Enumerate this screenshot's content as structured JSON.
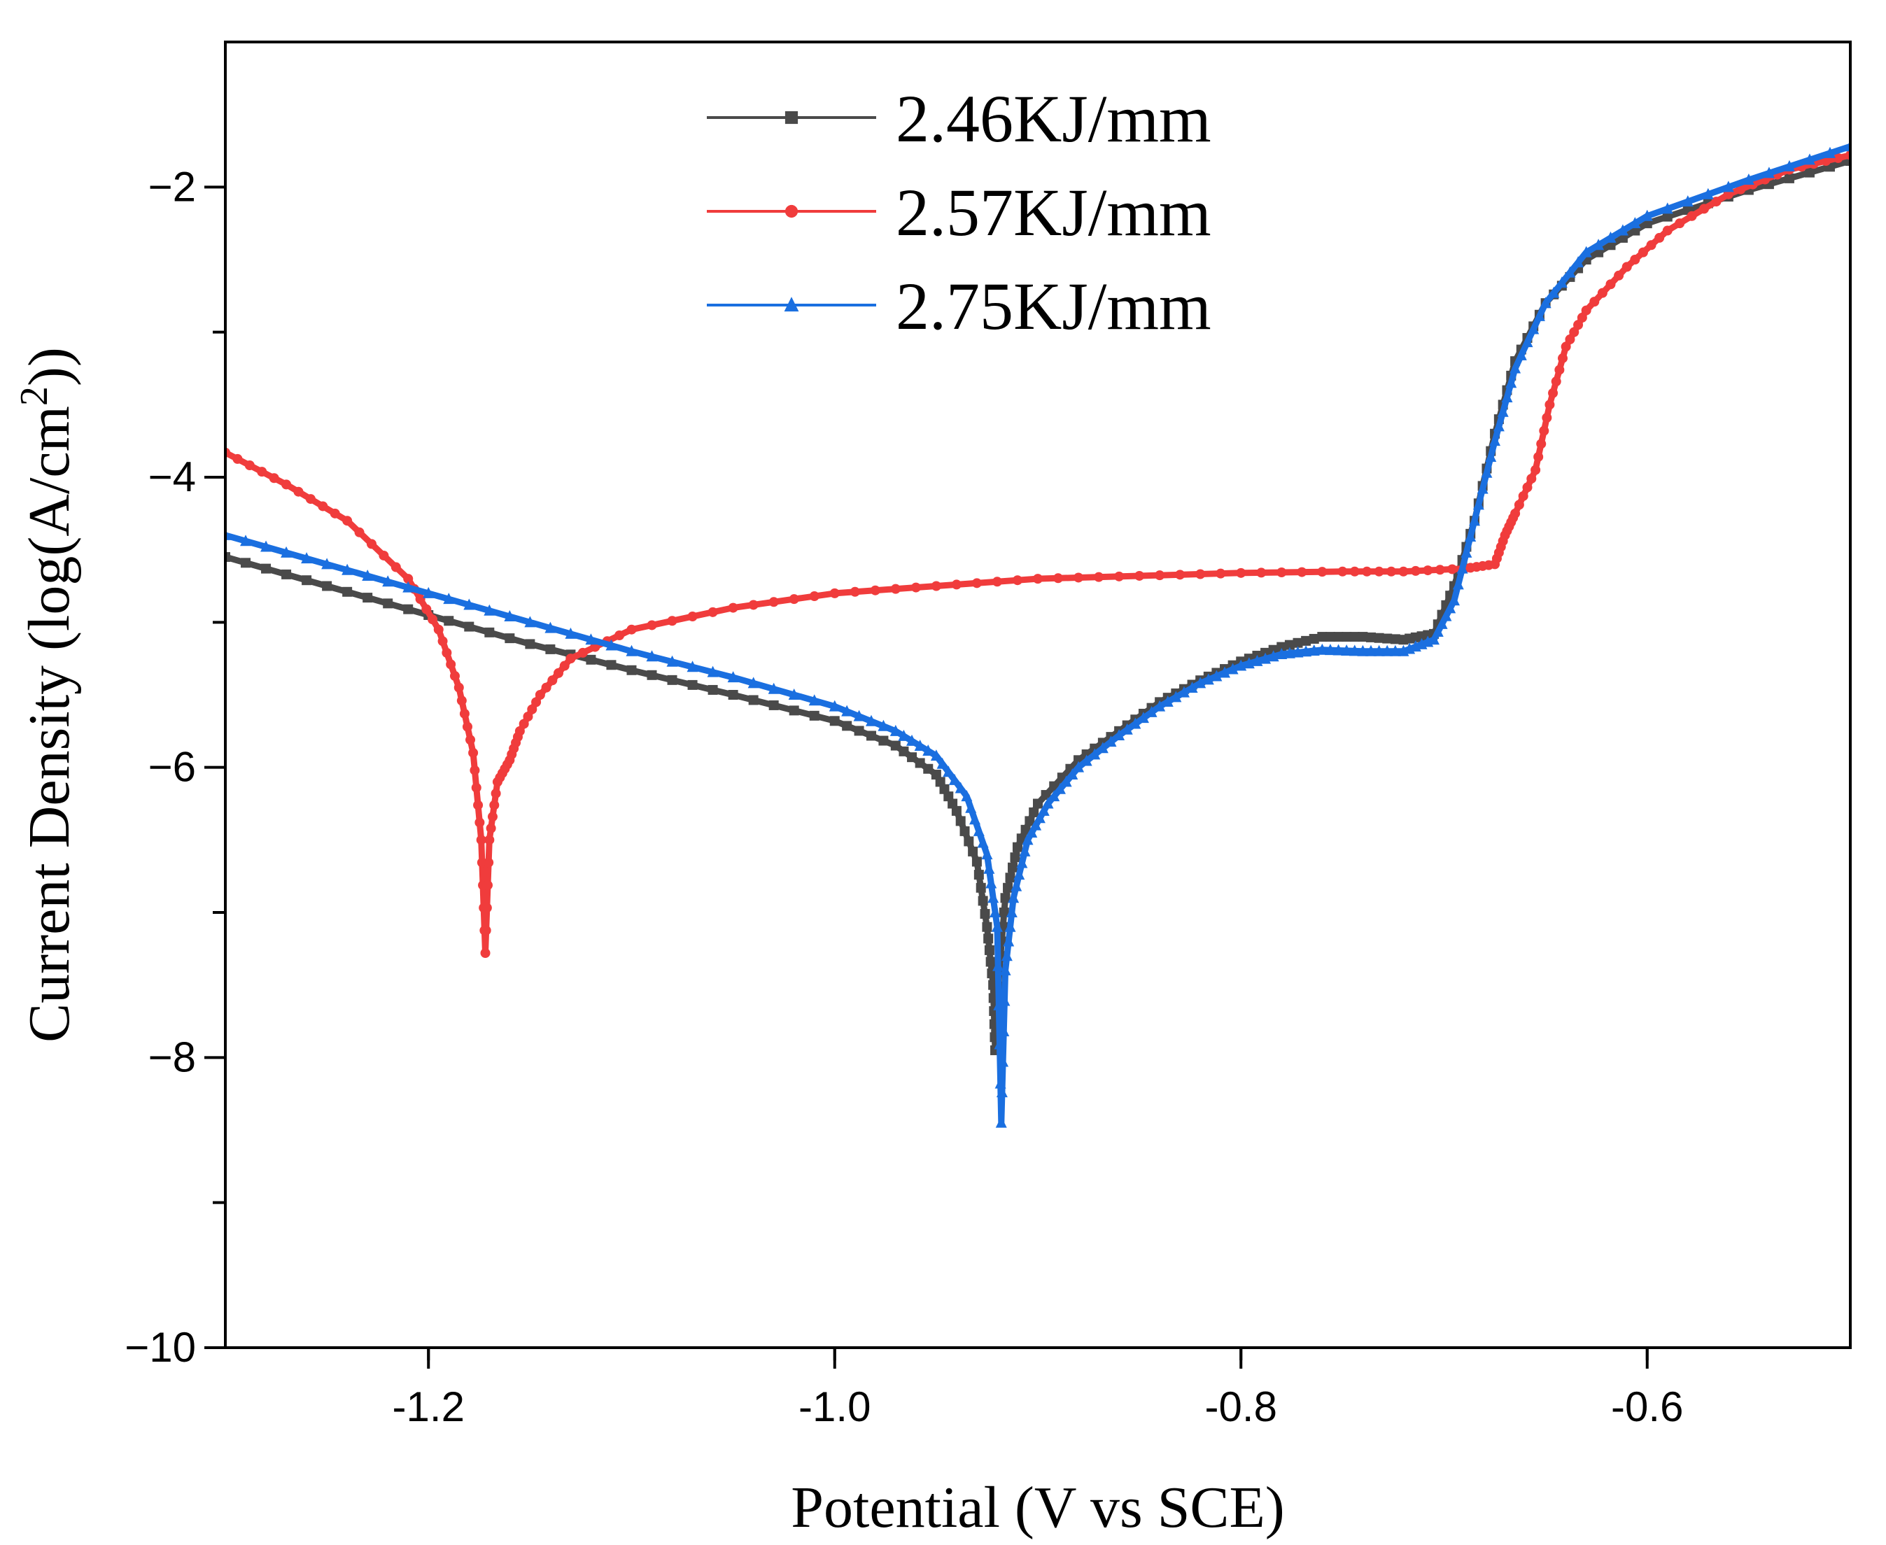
{
  "chart_data": {
    "type": "line",
    "xlabel": "Potential (V vs SCE)",
    "ylabel_main": "Current Density (log(A/cm",
    "ylabel_sup": "2",
    "ylabel_end": "))",
    "xlim": [
      -1.3,
      -0.5
    ],
    "ylim": [
      -10,
      -1
    ],
    "xticks": [
      -1.2,
      -1.0,
      -0.8,
      -0.6
    ],
    "xtick_labels": [
      "-1.2",
      "-1.0",
      "-0.8",
      "-0.6"
    ],
    "yticks": [
      -10,
      -8,
      -6,
      -4,
      -2
    ],
    "ytick_labels": [
      "−10",
      "−8",
      "−6",
      "−4",
      "−2"
    ],
    "grid": false,
    "legend_position": "top-center",
    "series": [
      {
        "name": "2.46KJ/mm",
        "color": "#4a4a4a",
        "marker": "square",
        "points": [
          [
            -1.3,
            -4.55
          ],
          [
            -1.25,
            -4.75
          ],
          [
            -1.2,
            -4.95
          ],
          [
            -1.15,
            -5.15
          ],
          [
            -1.1,
            -5.33
          ],
          [
            -1.05,
            -5.5
          ],
          [
            -1.0,
            -5.68
          ],
          [
            -0.97,
            -5.85
          ],
          [
            -0.95,
            -6.05
          ],
          [
            -0.94,
            -6.3
          ],
          [
            -0.93,
            -6.65
          ],
          [
            -0.925,
            -7.1
          ],
          [
            -0.922,
            -7.5
          ],
          [
            -0.921,
            -7.95
          ],
          [
            -0.919,
            -7.4
          ],
          [
            -0.916,
            -6.9
          ],
          [
            -0.91,
            -6.55
          ],
          [
            -0.9,
            -6.25
          ],
          [
            -0.88,
            -5.95
          ],
          [
            -0.86,
            -5.75
          ],
          [
            -0.84,
            -5.55
          ],
          [
            -0.82,
            -5.4
          ],
          [
            -0.8,
            -5.27
          ],
          [
            -0.78,
            -5.17
          ],
          [
            -0.76,
            -5.1
          ],
          [
            -0.74,
            -5.1
          ],
          [
            -0.72,
            -5.12
          ],
          [
            -0.705,
            -5.08
          ],
          [
            -0.695,
            -4.75
          ],
          [
            -0.685,
            -4.3
          ],
          [
            -0.675,
            -3.7
          ],
          [
            -0.665,
            -3.2
          ],
          [
            -0.65,
            -2.8
          ],
          [
            -0.63,
            -2.5
          ],
          [
            -0.6,
            -2.25
          ],
          [
            -0.55,
            -2.02
          ],
          [
            -0.5,
            -1.82
          ]
        ]
      },
      {
        "name": "2.57KJ/mm",
        "color": "#f03c3c",
        "marker": "circle",
        "points": [
          [
            -1.3,
            -3.83
          ],
          [
            -1.27,
            -4.05
          ],
          [
            -1.24,
            -4.3
          ],
          [
            -1.21,
            -4.7
          ],
          [
            -1.195,
            -5.05
          ],
          [
            -1.185,
            -5.45
          ],
          [
            -1.178,
            -5.9
          ],
          [
            -1.174,
            -6.5
          ],
          [
            -1.172,
            -7.28
          ],
          [
            -1.17,
            -6.5
          ],
          [
            -1.166,
            -6.1
          ],
          [
            -1.16,
            -5.95
          ],
          [
            -1.155,
            -5.75
          ],
          [
            -1.145,
            -5.5
          ],
          [
            -1.13,
            -5.25
          ],
          [
            -1.1,
            -5.05
          ],
          [
            -1.05,
            -4.9
          ],
          [
            -1.0,
            -4.8
          ],
          [
            -0.95,
            -4.75
          ],
          [
            -0.9,
            -4.7
          ],
          [
            -0.85,
            -4.68
          ],
          [
            -0.8,
            -4.66
          ],
          [
            -0.75,
            -4.65
          ],
          [
            -0.72,
            -4.65
          ],
          [
            -0.69,
            -4.63
          ],
          [
            -0.675,
            -4.6
          ],
          [
            -0.67,
            -4.4
          ],
          [
            -0.665,
            -4.25
          ],
          [
            -0.655,
            -3.95
          ],
          [
            -0.648,
            -3.5
          ],
          [
            -0.64,
            -3.1
          ],
          [
            -0.63,
            -2.85
          ],
          [
            -0.61,
            -2.55
          ],
          [
            -0.59,
            -2.3
          ],
          [
            -0.56,
            -2.05
          ],
          [
            -0.53,
            -1.88
          ],
          [
            -0.5,
            -1.78
          ]
        ]
      },
      {
        "name": "2.75KJ/mm",
        "color": "#1a6fe0",
        "marker": "triangle",
        "points": [
          [
            -1.3,
            -4.4
          ],
          [
            -1.25,
            -4.6
          ],
          [
            -1.2,
            -4.8
          ],
          [
            -1.15,
            -5.0
          ],
          [
            -1.1,
            -5.2
          ],
          [
            -1.05,
            -5.38
          ],
          [
            -1.0,
            -5.58
          ],
          [
            -0.97,
            -5.75
          ],
          [
            -0.95,
            -5.92
          ],
          [
            -0.935,
            -6.2
          ],
          [
            -0.925,
            -6.6
          ],
          [
            -0.92,
            -7.1
          ],
          [
            -0.918,
            -8.45
          ],
          [
            -0.916,
            -7.4
          ],
          [
            -0.912,
            -6.9
          ],
          [
            -0.905,
            -6.5
          ],
          [
            -0.895,
            -6.25
          ],
          [
            -0.88,
            -6.0
          ],
          [
            -0.86,
            -5.78
          ],
          [
            -0.84,
            -5.58
          ],
          [
            -0.82,
            -5.42
          ],
          [
            -0.8,
            -5.3
          ],
          [
            -0.78,
            -5.22
          ],
          [
            -0.76,
            -5.19
          ],
          [
            -0.74,
            -5.2
          ],
          [
            -0.72,
            -5.2
          ],
          [
            -0.705,
            -5.12
          ],
          [
            -0.695,
            -4.85
          ],
          [
            -0.685,
            -4.3
          ],
          [
            -0.675,
            -3.75
          ],
          [
            -0.665,
            -3.25
          ],
          [
            -0.65,
            -2.8
          ],
          [
            -0.63,
            -2.45
          ],
          [
            -0.6,
            -2.2
          ],
          [
            -0.55,
            -1.95
          ],
          [
            -0.5,
            -1.72
          ]
        ]
      }
    ]
  }
}
